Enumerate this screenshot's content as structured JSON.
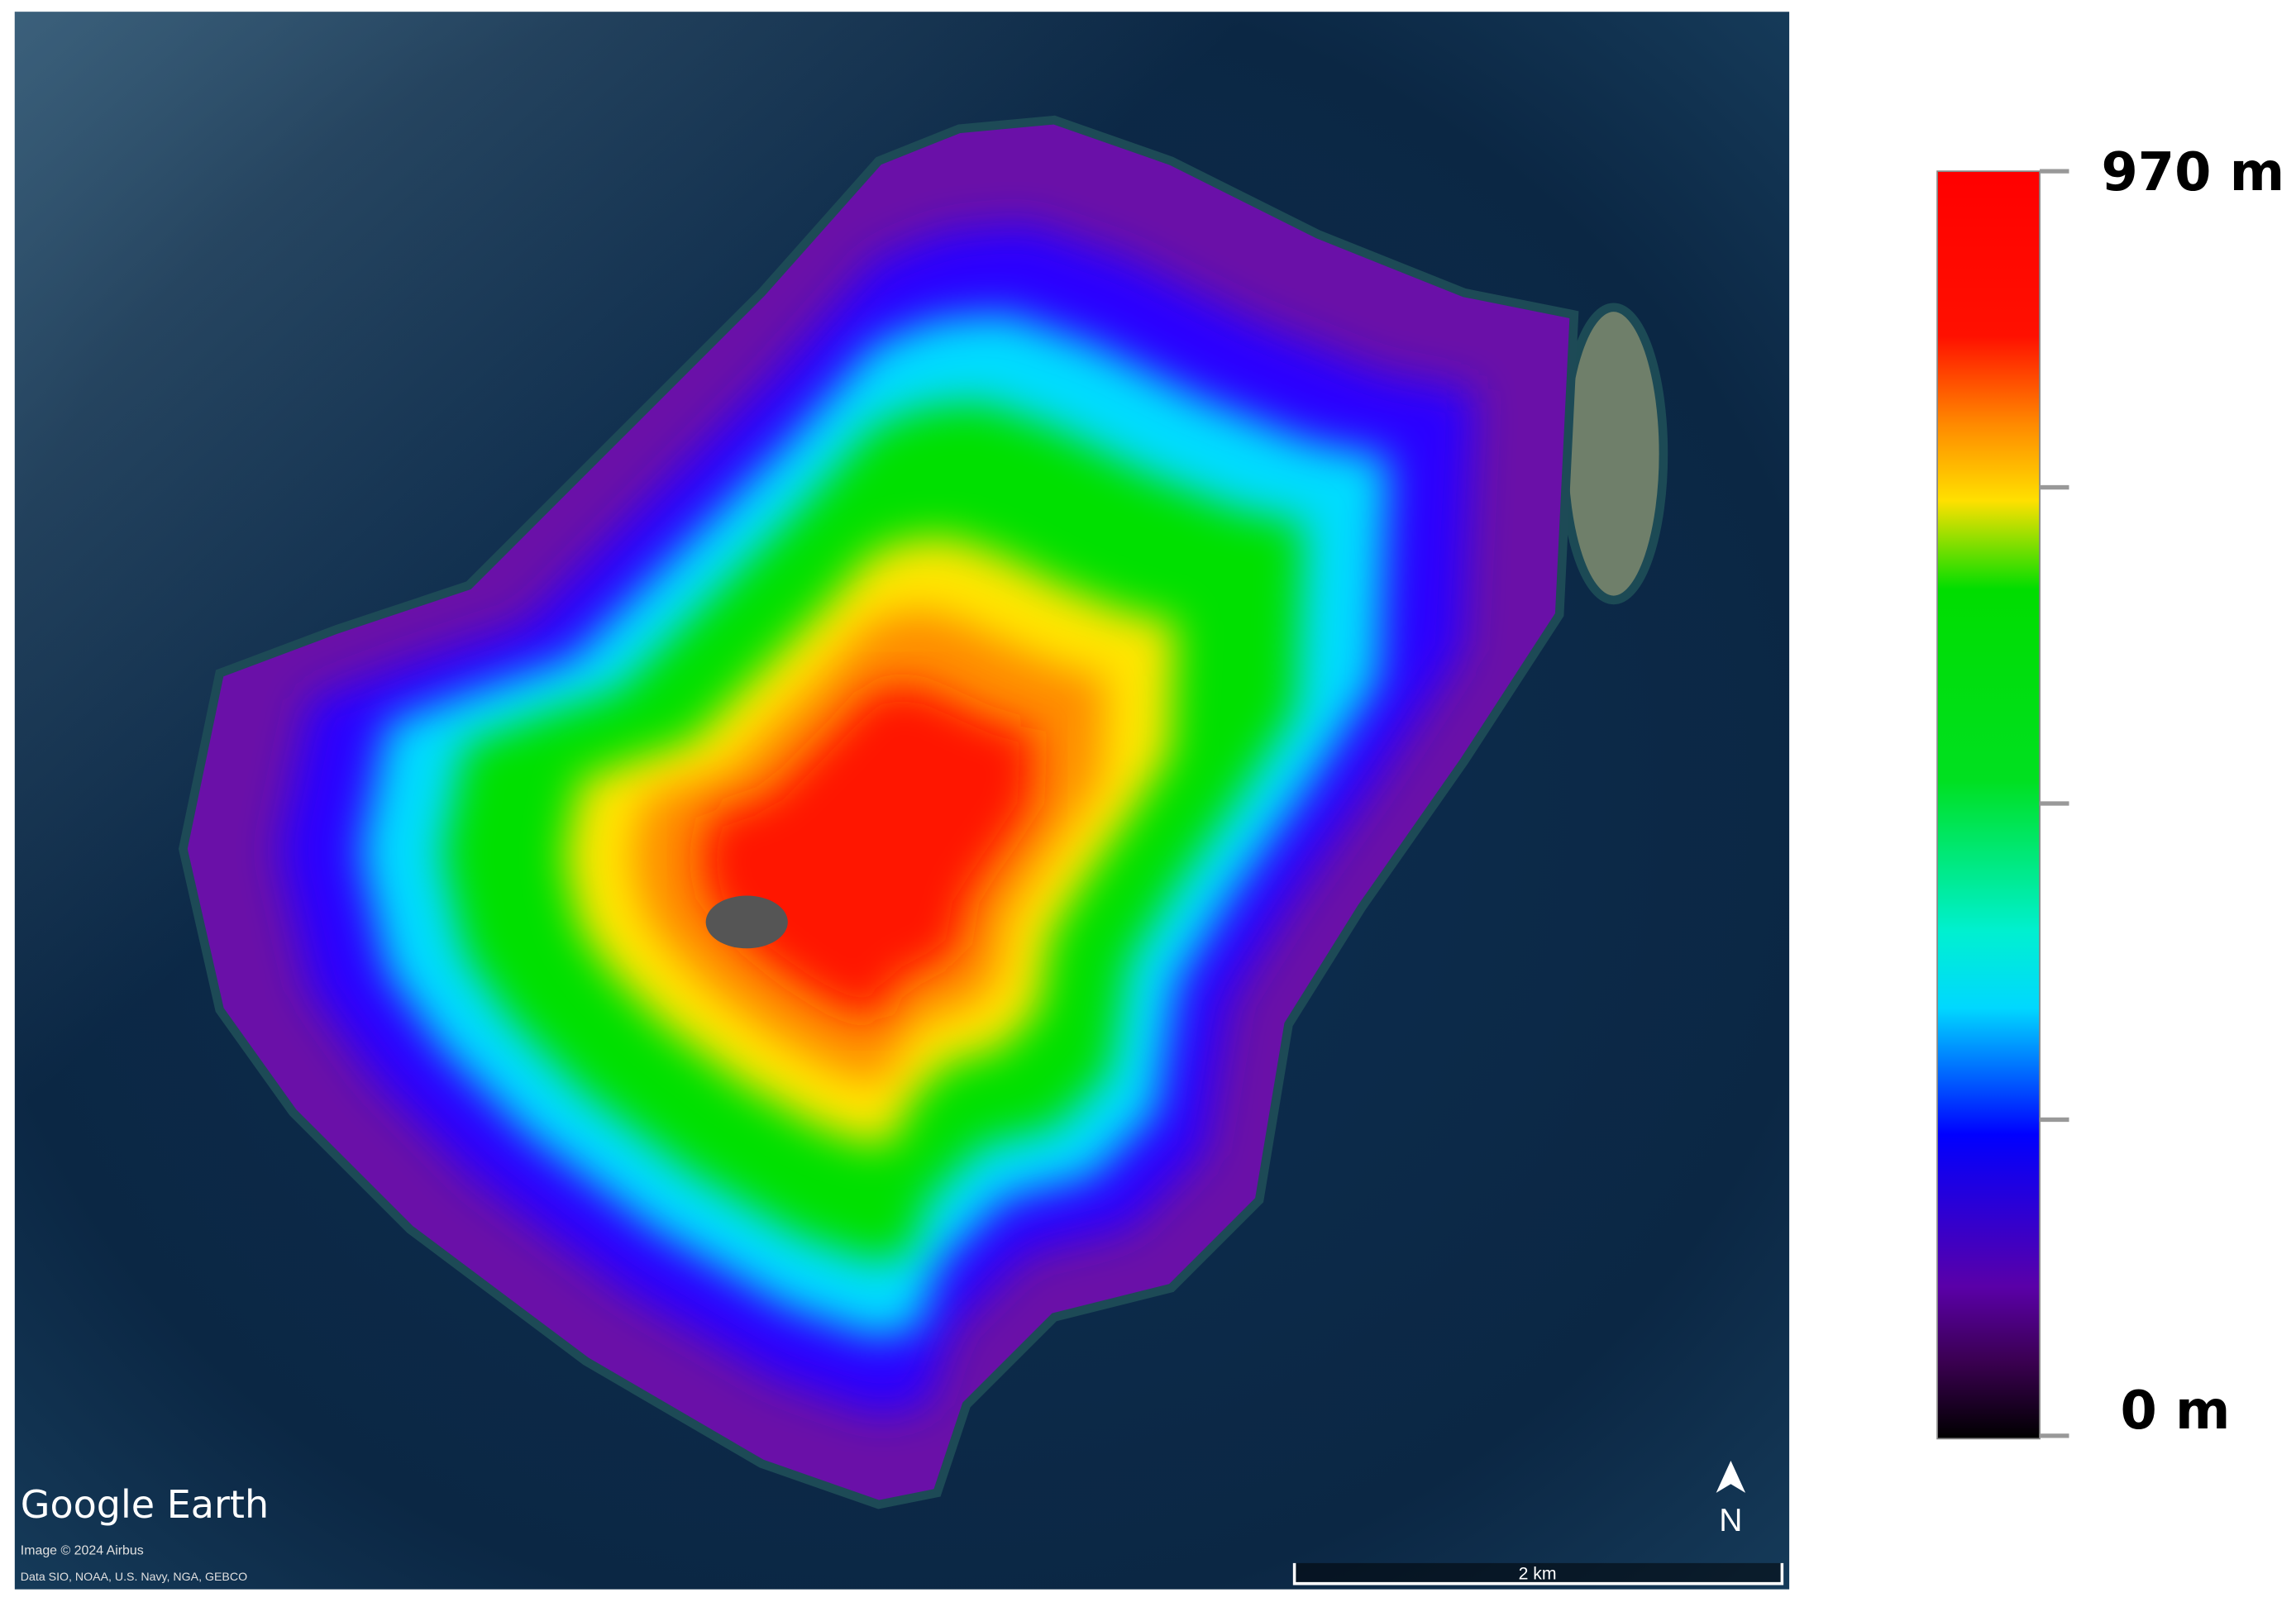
{
  "map": {
    "logo": "Google Earth",
    "image_credit": "Image © 2024 Airbus",
    "data_credit": "Data SIO, NOAA, U.S. Navy, NGA, GEBCO",
    "scale_bar": "2 km",
    "north": "N"
  },
  "legend": {
    "top_label": "970 m",
    "bottom_label": "0 m"
  }
}
